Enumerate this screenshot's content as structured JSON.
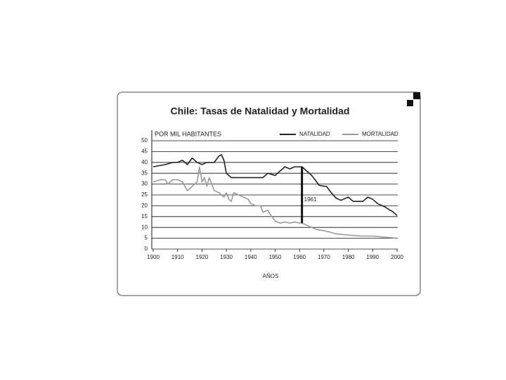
{
  "chart_data": {
    "type": "line",
    "title": "Chile: Tasas de Natalidad y Mortalidad",
    "y_label": "POR MIL HABITANTES",
    "x_label": "AÑOS",
    "xlim": [
      1900,
      2000
    ],
    "ylim": [
      0,
      50
    ],
    "xticks": [
      1900,
      1910,
      1920,
      1930,
      1940,
      1950,
      1960,
      1970,
      1980,
      1990,
      2000
    ],
    "yticks": [
      0,
      5,
      10,
      15,
      20,
      25,
      30,
      35,
      40,
      45,
      50
    ],
    "grid": true,
    "legend": "top-right",
    "annotation": {
      "label": "1961",
      "x": 1961
    },
    "series": [
      {
        "name": "NATALIDAD",
        "color": "#222222",
        "x": [
          1900,
          1905,
          1908,
          1910,
          1912,
          1914,
          1916,
          1918,
          1920,
          1922,
          1925,
          1927,
          1928,
          1929,
          1930,
          1932,
          1935,
          1937,
          1940,
          1942,
          1945,
          1947,
          1950,
          1952,
          1954,
          1956,
          1958,
          1960,
          1961,
          1963,
          1965,
          1967,
          1968,
          1970,
          1971,
          1973,
          1975,
          1977,
          1980,
          1982,
          1984,
          1986,
          1988,
          1990,
          1992,
          1995,
          1997,
          1998,
          2000
        ],
        "values": [
          38,
          39,
          40,
          40,
          41,
          39,
          42,
          40,
          39,
          40,
          40,
          43,
          43.5,
          41,
          35,
          33,
          33,
          33,
          33,
          33,
          33,
          35,
          34,
          36,
          38,
          37,
          38,
          38,
          38,
          36,
          34,
          31,
          29.5,
          29,
          29,
          26,
          23.5,
          22.5,
          24,
          22,
          22,
          22,
          24,
          23,
          21,
          19.5,
          18,
          17.5,
          15.5
        ]
      },
      {
        "name": "MORTALIDAD",
        "color": "#999999",
        "x": [
          1900,
          1903,
          1905,
          1906,
          1908,
          1910,
          1912,
          1914,
          1915,
          1917,
          1918,
          1919,
          1920,
          1921,
          1922,
          1923,
          1925,
          1927,
          1929,
          1930,
          1931,
          1932,
          1933,
          1935,
          1937,
          1939,
          1940,
          1942,
          1944,
          1945,
          1947,
          1948,
          1950,
          1952,
          1954,
          1956,
          1958,
          1960,
          1961,
          1963,
          1965,
          1967,
          1970,
          1972,
          1975,
          1980,
          1985,
          1990,
          1995,
          2000
        ],
        "values": [
          31,
          32,
          32,
          30,
          32,
          32,
          31,
          27,
          28,
          30,
          31,
          38,
          31,
          33,
          29,
          33,
          27,
          26,
          24,
          26,
          23,
          22,
          26,
          25,
          24,
          23,
          21,
          20,
          20,
          17,
          18,
          16,
          13,
          12,
          12.5,
          12,
          12.5,
          12,
          12,
          11,
          10,
          9,
          8.5,
          8,
          7,
          6.5,
          6,
          6,
          5.5,
          5
        ]
      }
    ]
  }
}
